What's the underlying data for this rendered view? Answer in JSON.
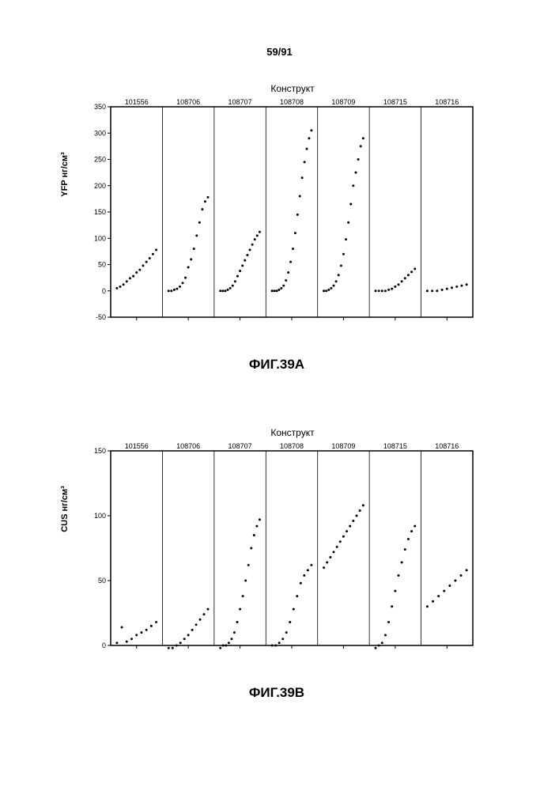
{
  "page_number": "59/91",
  "chartA": {
    "type": "scatter",
    "title": "Конструкт",
    "ylabel": "YFP нг/см³",
    "caption": "ФИГ.39A",
    "ylim": [
      -50,
      350
    ],
    "ytick_step": 50,
    "categories": [
      "101556",
      "108706",
      "108707",
      "108708",
      "108709",
      "108715",
      "108716"
    ],
    "panel_dividers": true,
    "background_color": "#ffffff",
    "grid_color": "#000000",
    "point_color": "#000000",
    "point_size": 1.5,
    "label_fontsize": 9,
    "title_fontsize": 12,
    "ylabel_fontsize": 11,
    "series": {
      "101556": [
        5,
        8,
        12,
        18,
        24,
        28,
        35,
        40,
        48,
        55,
        62,
        70,
        78
      ],
      "108706": [
        0,
        0,
        2,
        4,
        8,
        15,
        25,
        45,
        60,
        80,
        105,
        130,
        155,
        170,
        178
      ],
      "108707": [
        0,
        0,
        0,
        2,
        5,
        10,
        18,
        28,
        38,
        48,
        58,
        68,
        78,
        88,
        98,
        105,
        112
      ],
      "108708": [
        0,
        0,
        0,
        2,
        5,
        10,
        20,
        35,
        55,
        80,
        110,
        145,
        180,
        215,
        245,
        270,
        290,
        305
      ],
      "108709": [
        0,
        0,
        2,
        5,
        10,
        18,
        30,
        48,
        70,
        98,
        130,
        165,
        200,
        225,
        250,
        275,
        290
      ],
      "108715": [
        0,
        0,
        0,
        0,
        2,
        4,
        8,
        12,
        18,
        24,
        30,
        36,
        42
      ],
      "108716": [
        0,
        0,
        0,
        2,
        4,
        6,
        8,
        10,
        12
      ]
    }
  },
  "chartB": {
    "type": "scatter",
    "title": "Конструкт",
    "ylabel": "CUS нг/см³",
    "caption": "ФИГ.39B",
    "ylim": [
      0,
      150
    ],
    "ytick_step": 50,
    "categories": [
      "101556",
      "108706",
      "108707",
      "108708",
      "108709",
      "108715",
      "108716"
    ],
    "panel_dividers": true,
    "background_color": "#ffffff",
    "grid_color": "#000000",
    "point_color": "#000000",
    "point_size": 1.5,
    "label_fontsize": 9,
    "title_fontsize": 12,
    "ylabel_fontsize": 11,
    "series": {
      "101556": [
        2,
        14,
        3,
        5,
        8,
        10,
        12,
        15,
        18
      ],
      "108706": [
        -2,
        -2,
        0,
        2,
        5,
        8,
        12,
        16,
        20,
        24,
        28
      ],
      "108707": [
        -2,
        0,
        0,
        2,
        5,
        10,
        18,
        28,
        38,
        50,
        62,
        75,
        85,
        92,
        97
      ],
      "108708": [
        0,
        0,
        2,
        5,
        10,
        18,
        28,
        38,
        48,
        54,
        58,
        62
      ],
      "108709": [
        60,
        64,
        68,
        72,
        76,
        80,
        84,
        88,
        92,
        96,
        100,
        104,
        108
      ],
      "108715": [
        -2,
        0,
        2,
        8,
        18,
        30,
        42,
        54,
        64,
        74,
        82,
        88,
        92
      ],
      "108716": [
        30,
        34,
        38,
        42,
        46,
        50,
        54,
        58
      ]
    }
  }
}
